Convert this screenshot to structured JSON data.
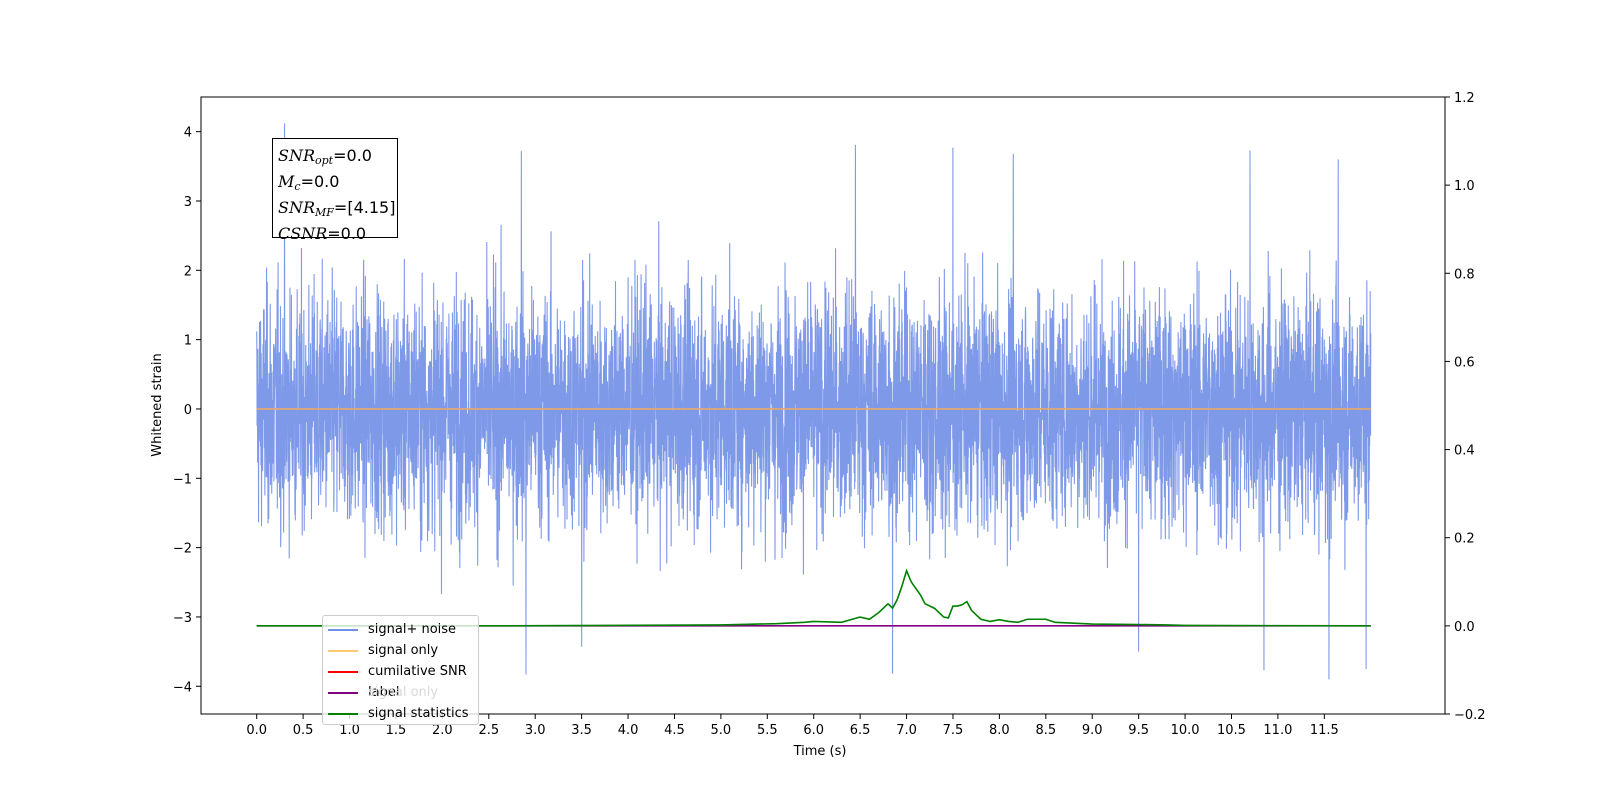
{
  "chart_data": {
    "type": "line",
    "xlabel": "Time (s)",
    "ylabel": "Whitened strain",
    "xlim": [
      -0.6,
      12.8
    ],
    "ylim": [
      -4.4,
      4.5
    ],
    "y2lim": [
      -0.2,
      1.2
    ],
    "x_ticks": [
      "0.0",
      "0.5",
      "1.0",
      "1.5",
      "2.0",
      "2.5",
      "3.0",
      "3.5",
      "4.0",
      "4.5",
      "5.0",
      "5.5",
      "6.0",
      "6.5",
      "7.0",
      "7.5",
      "8.0",
      "8.5",
      "9.0",
      "9.5",
      "10.0",
      "10.5",
      "11.0",
      "11.5"
    ],
    "y_ticks": [
      "4",
      "3",
      "2",
      "1",
      "0",
      "−1",
      "−2",
      "−3",
      "−4"
    ],
    "y2_ticks": [
      "1.2",
      "1.0",
      "0.8",
      "0.6",
      "0.4",
      "0.2",
      "0.0",
      "−0.2"
    ],
    "annotation": {
      "snr_opt": {
        "symbol": "SNR",
        "sub": "opt",
        "value": "=0.0"
      },
      "mc": {
        "symbol": "M",
        "sub": "c",
        "value": "=0.0"
      },
      "snr_mf": {
        "symbol": "SNR",
        "sub": "MF",
        "value": "=[4.15]"
      },
      "csnr": {
        "symbol": "CSNR",
        "sub": "",
        "value": "=0.0"
      }
    },
    "legend": [
      {
        "label": "signal+ noise",
        "color": "#6f8fe6"
      },
      {
        "label": "signal only",
        "color": "#ffc870"
      },
      {
        "label": "cumilative SNR",
        "color": "#ff0000"
      },
      {
        "label": "label",
        "color": "#800080"
      },
      {
        "label": "signal statistics",
        "color": "#008000"
      }
    ],
    "ghost_legend_text": "signal only",
    "series": [
      {
        "name": "signal+ noise",
        "color": "#7893e8",
        "t_range": [
          0.0,
          12.0
        ],
        "envelope_typical": [
          -2.4,
          2.6
        ],
        "peaks": [
          [
            0.3,
            4.12
          ],
          [
            2.85,
            3.72
          ],
          [
            6.45,
            3.81
          ],
          [
            7.5,
            3.77
          ],
          [
            8.15,
            3.68
          ],
          [
            10.7,
            3.73
          ],
          [
            11.65,
            3.6
          ]
        ],
        "troughs": [
          [
            2.9,
            -3.83
          ],
          [
            6.85,
            -3.82
          ],
          [
            10.85,
            -3.77
          ],
          [
            11.55,
            -3.9
          ],
          [
            11.95,
            -3.75
          ],
          [
            9.5,
            -3.5
          ],
          [
            3.5,
            -3.43
          ]
        ]
      },
      {
        "name": "signal only",
        "color": "#e8a86a",
        "x": [
          0.0,
          12.0
        ],
        "y": [
          0.0,
          0.0
        ]
      },
      {
        "name": "label",
        "color": "#800080",
        "axis": "right",
        "x": [
          0.0,
          12.0
        ],
        "y": [
          0.0,
          0.0
        ]
      },
      {
        "name": "signal statistics",
        "color": "#008000",
        "axis": "right",
        "x": [
          0.0,
          2.5,
          5.0,
          5.6,
          5.9,
          6.0,
          6.3,
          6.5,
          6.6,
          6.7,
          6.8,
          6.85,
          6.9,
          6.95,
          7.0,
          7.05,
          7.1,
          7.15,
          7.2,
          7.3,
          7.4,
          7.45,
          7.5,
          7.55,
          7.6,
          7.65,
          7.7,
          7.8,
          7.9,
          8.0,
          8.1,
          8.2,
          8.3,
          8.5,
          8.6,
          8.8,
          9.0,
          9.5,
          9.8,
          10.0,
          12.0
        ],
        "y": [
          0.0,
          0.0,
          0.002,
          0.005,
          0.008,
          0.01,
          0.008,
          0.02,
          0.015,
          0.03,
          0.05,
          0.04,
          0.06,
          0.09,
          0.125,
          0.1,
          0.085,
          0.07,
          0.05,
          0.04,
          0.02,
          0.018,
          0.045,
          0.045,
          0.048,
          0.055,
          0.035,
          0.015,
          0.01,
          0.014,
          0.01,
          0.008,
          0.015,
          0.015,
          0.008,
          0.006,
          0.004,
          0.003,
          0.002,
          0.001,
          0.0
        ]
      }
    ]
  }
}
